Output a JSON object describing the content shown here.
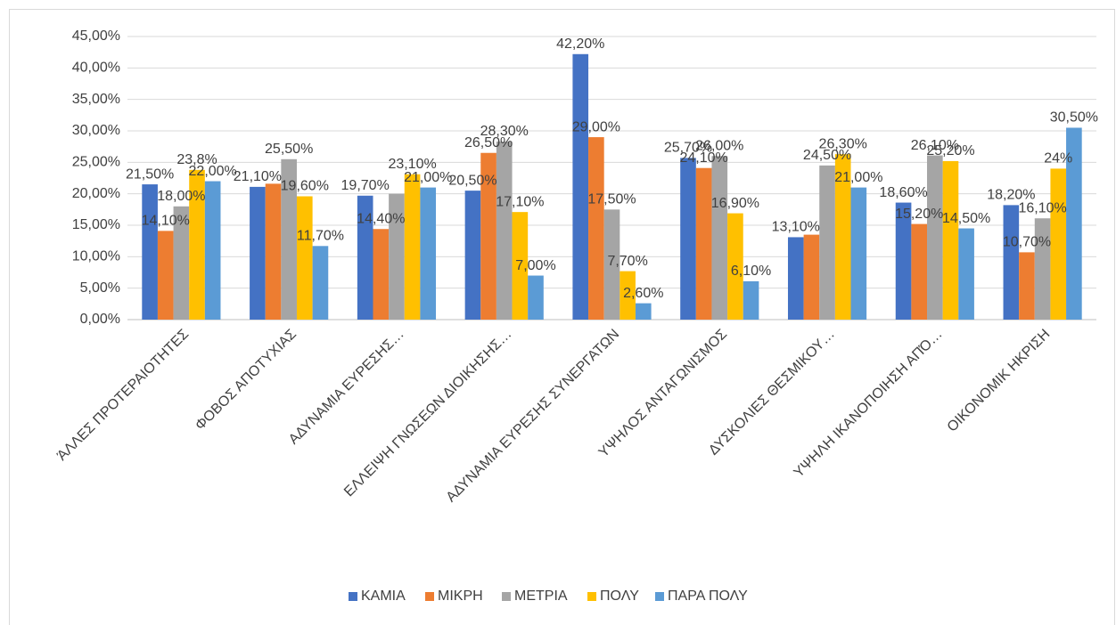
{
  "chart_data": {
    "type": "bar",
    "categories": [
      "ΆΛΛΕΣ ΠΡΟΤΕΡΑΙΟΤΗΤΕΣ",
      "ΦΟΒΟΣ ΑΠΟΤΥΧΙΑΣ",
      "ΑΔΥΝΑΜΙΑ ΕΥΡΕΣΗΣ…",
      "ΕΛΛΕΙΨΗ ΓΝΩΣΕΩΝ ΔΙΟΙΚΗΣΗΣ…",
      "ΑΔΥΝΑΜΙΑ ΕΥΡΕΣΗΣ ΣΥΝΕΡΓΑΤΩΝ",
      "ΥΨΗΛΟΣ ΑΝΤΑΓΩΝΙΣΜΟΣ",
      "ΔΥΣΚΟΛΙΕΣ ΘΕΣΜΙΚΟΥ…",
      "ΥΨΗΛΗ ΙΚΑΝΟΠΟΙΗΣΗ ΑΠΌ…",
      "ΟΙΚΟΝΟΜΙΚ ΗΚΡΙΣΗ"
    ],
    "series": [
      {
        "name": "ΚΑΜΙΑ",
        "color": "#4472c4",
        "values": [
          21.5,
          21.1,
          19.7,
          20.5,
          42.2,
          25.7,
          13.1,
          18.6,
          18.2
        ],
        "value_labels": [
          "21,50%",
          "21,10%",
          "19,70%",
          "20,50%",
          "42,20%",
          "25,70%",
          "13,10%",
          "18,60%",
          "18,20%"
        ]
      },
      {
        "name": "ΜΙΚΡΗ",
        "color": "#ed7d31",
        "values": [
          14.1,
          21.6,
          14.4,
          26.5,
          29.0,
          24.1,
          13.5,
          15.2,
          10.7
        ],
        "value_labels": [
          "14,10%",
          null,
          "14,40%",
          "26,50%",
          "29,00%",
          "24,10%",
          null,
          "15,20%",
          "10,70%"
        ]
      },
      {
        "name": "ΜΕΤΡΙΑ",
        "color": "#a5a5a5",
        "values": [
          18.0,
          25.5,
          20.0,
          28.3,
          17.5,
          26.0,
          24.5,
          26.1,
          16.1
        ],
        "value_labels": [
          "18,00%",
          "25,50%",
          null,
          "28,30%",
          "17,50%",
          "26,00%",
          "24,50%",
          "26,10%",
          "16,10%"
        ]
      },
      {
        "name": "ΠΟΛΥ",
        "color": "#ffc000",
        "values": [
          23.8,
          19.6,
          23.1,
          17.1,
          7.7,
          16.9,
          26.3,
          25.2,
          24
        ],
        "value_labels": [
          "23,8%",
          "19,60%",
          "23,10%",
          "17,10%",
          "7,70%",
          "16,90%",
          "26,30%",
          "25,20%",
          "24%"
        ]
      },
      {
        "name": "ΠΑΡΑ ΠΟΛΥ",
        "color": "#5b9bd5",
        "values": [
          22.0,
          11.7,
          21.0,
          7.0,
          2.6,
          6.1,
          21.0,
          14.5,
          30.5
        ],
        "value_labels": [
          "22,00%",
          "11,70%",
          "21,00%",
          "7,00%",
          "2,60%",
          "6,10%",
          "21,00%",
          "14,50%",
          "30,50%"
        ]
      }
    ],
    "ylim": [
      0,
      45
    ],
    "yticks": [
      {
        "value": 0,
        "label": "0,00%"
      },
      {
        "value": 5,
        "label": "5,00%"
      },
      {
        "value": 10,
        "label": "10,00%"
      },
      {
        "value": 15,
        "label": "15,00%"
      },
      {
        "value": 20,
        "label": "20,00%"
      },
      {
        "value": 25,
        "label": "25,00%"
      },
      {
        "value": 30,
        "label": "30,00%"
      },
      {
        "value": 35,
        "label": "35,00%"
      },
      {
        "value": 40,
        "label": "40,00%"
      },
      {
        "value": 45,
        "label": "45,00%"
      }
    ],
    "grid": true,
    "legend": "bottom"
  }
}
